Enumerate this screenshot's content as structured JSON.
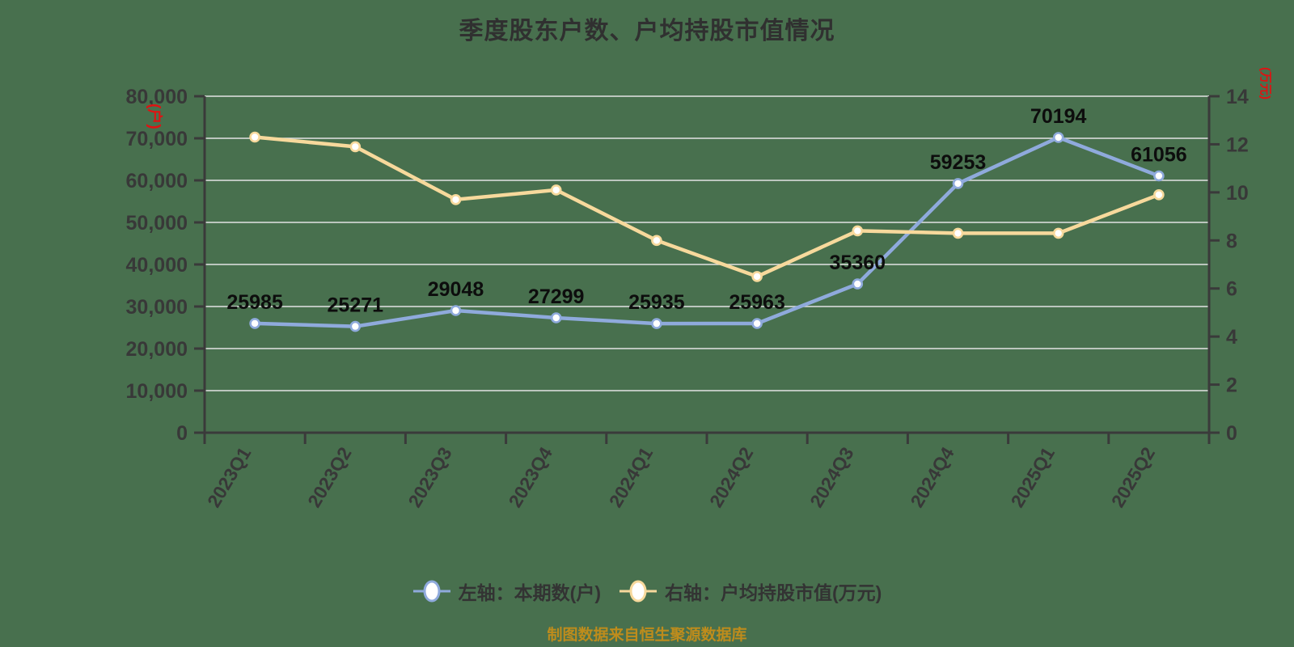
{
  "title": "季度股东户数、户均持股市值情况",
  "source_note": "制图数据来自恒生聚源数据库",
  "colors": {
    "background": "#48704E",
    "series_left": "#8FAADC",
    "series_right": "#F7D99C",
    "axis_unit_red": "#E01212",
    "grid": "#E3E3E3",
    "axis": "#3A3A3A",
    "tick_text": "#383838",
    "title_text": "#303030",
    "data_label": "#0D0D0D",
    "source_text": "#BE8C1C"
  },
  "left_axis": {
    "unit": "(户)",
    "tick_labels": [
      "0",
      "10,000",
      "20,000",
      "30,000",
      "40,000",
      "50,000",
      "60,000",
      "70,000",
      "80,000"
    ]
  },
  "right_axis": {
    "unit": "(万元)",
    "tick_labels": [
      "0",
      "2",
      "4",
      "6",
      "8",
      "10",
      "12",
      "14"
    ]
  },
  "legend": {
    "items": [
      {
        "label": "左轴：本期数(户)",
        "color": "#8FAADC"
      },
      {
        "label": "右轴：户均持股市值(万元)",
        "color": "#F7D99C"
      }
    ]
  },
  "chart_data": {
    "type": "line",
    "title": "季度股东户数、户均持股市值情况",
    "categories": [
      "2023Q1",
      "2023Q2",
      "2023Q3",
      "2023Q4",
      "2024Q1",
      "2024Q2",
      "2024Q3",
      "2024Q4",
      "2025Q1",
      "2025Q2"
    ],
    "left_ylim": [
      0,
      80000
    ],
    "right_ylim": [
      0,
      14
    ],
    "grid": true,
    "legend_position": "bottom",
    "series": [
      {
        "name": "左轴：本期数(户)",
        "axis": "left",
        "color": "#8FAADC",
        "show_labels": true,
        "values": [
          25985,
          25271,
          29048,
          27299,
          25935,
          25963,
          35360,
          59253,
          70194,
          61056
        ]
      },
      {
        "name": "右轴：户均持股市值(万元)",
        "axis": "right",
        "color": "#F7D99C",
        "show_labels": false,
        "values": [
          12.3,
          11.9,
          9.7,
          10.1,
          8.0,
          6.5,
          8.4,
          8.3,
          8.3,
          9.9
        ]
      }
    ]
  }
}
